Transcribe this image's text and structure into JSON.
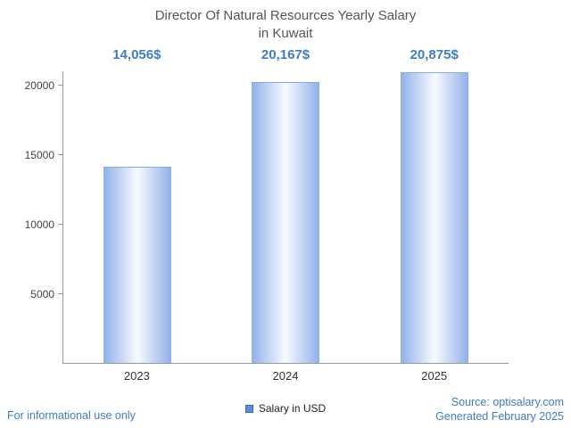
{
  "title": {
    "line1": "Director Of Natural Resources Yearly Salary",
    "line2": "in Kuwait"
  },
  "chart_data": {
    "type": "bar",
    "title": "Director Of Natural Resources Yearly Salary in Kuwait",
    "categories": [
      "2023",
      "2024",
      "2025"
    ],
    "values": [
      14056,
      20167,
      20875
    ],
    "value_labels": [
      "14,056$",
      "20,167$",
      "20,875$"
    ],
    "yticks": [
      5000,
      10000,
      15000,
      20000
    ],
    "ylim": [
      0,
      21000
    ],
    "xlabel": "",
    "ylabel": "",
    "grid": false,
    "legend_position": "bottom",
    "series_name": "Salary in USD"
  },
  "legend": {
    "label": "Salary in USD"
  },
  "footer": {
    "left": "For informational use only",
    "source": "Source: optisalary.com",
    "generated": "Generated February 2025"
  },
  "colors": {
    "accent": "#3d7dc1",
    "bar_edge": "#8fb0e8",
    "bar_center": "#f8fbff",
    "axis": "#999999",
    "text": "#555555"
  }
}
